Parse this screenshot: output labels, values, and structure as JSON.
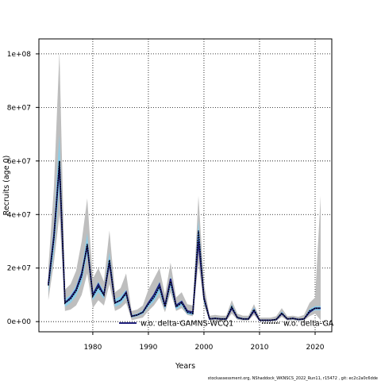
{
  "chart_data": {
    "type": "line",
    "title": "",
    "xlabel": "Years",
    "ylabel": "Recruits (age 0)",
    "xlim": [
      1970.3,
      2023
    ],
    "ylim": [
      -3800000,
      105600000
    ],
    "x_ticks": [
      1980,
      1990,
      2000,
      2010,
      2020
    ],
    "x_tick_labels": [
      "1980",
      "1990",
      "2000",
      "2010",
      "2020"
    ],
    "y_ticks": [
      0,
      20000000,
      40000000,
      60000000,
      80000000,
      100000000
    ],
    "y_tick_labels": [
      "0e+00",
      "2e+07",
      "4e+07",
      "6e+07",
      "8e+07",
      "1e+08"
    ],
    "grid": true,
    "legend_position": "bottom",
    "colors": {
      "band": "#bebebe",
      "main": "#1f1f7a",
      "alt_band": "#87ceeb",
      "alt_line": "#3a6fd0",
      "dotted": "#000000",
      "grid": "#000000"
    },
    "x": [
      1972,
      1973,
      1974,
      1975,
      1976,
      1977,
      1978,
      1979,
      1980,
      1981,
      1982,
      1983,
      1984,
      1985,
      1986,
      1987,
      1988,
      1989,
      1990,
      1991,
      1992,
      1993,
      1994,
      1995,
      1996,
      1997,
      1998,
      1999,
      2000,
      2001,
      2002,
      2003,
      2004,
      2005,
      2006,
      2007,
      2008,
      2009,
      2010,
      2011,
      2012,
      2013,
      2014,
      2015,
      2016,
      2017,
      2018,
      2019,
      2020,
      2021
    ],
    "series": [
      {
        "name": "w.o. delta-GAMNS-WCQ1",
        "style": "solid",
        "values": [
          14000000,
          32000000,
          58000000,
          7000000,
          9000000,
          12000000,
          18000000,
          28000000,
          10000000,
          14000000,
          10000000,
          22000000,
          7000000,
          8000000,
          11000000,
          2000000,
          2500000,
          3500000,
          7000000,
          10000000,
          14000000,
          6000000,
          16000000,
          6000000,
          7500000,
          4000000,
          3500000,
          30000000,
          9000000,
          1000000,
          1200000,
          1000000,
          1000000,
          5000000,
          1500000,
          1000000,
          1000000,
          4000000,
          500000,
          500000,
          500000,
          800000,
          3000000,
          1000000,
          1200000,
          800000,
          1000000,
          3500000,
          5000000,
          5000000
        ],
        "lower": [
          8000000,
          22000000,
          40000000,
          4000000,
          4500000,
          6000000,
          10000000,
          18000000,
          5000000,
          8000000,
          6000000,
          14000000,
          4000000,
          5000000,
          7000000,
          500000,
          1000000,
          1500000,
          4000000,
          6000000,
          9000000,
          3500000,
          11000000,
          4000000,
          5000000,
          2500000,
          2000000,
          22000000,
          6000000,
          300000,
          500000,
          300000,
          300000,
          3000000,
          700000,
          400000,
          400000,
          2500000,
          100000,
          100000,
          100000,
          200000,
          1800000,
          400000,
          500000,
          300000,
          400000,
          2000000,
          3000000,
          500000
        ],
        "upper": [
          20000000,
          50000000,
          101000000,
          12000000,
          14000000,
          19000000,
          30000000,
          46000000,
          16000000,
          20000000,
          15000000,
          34000000,
          11000000,
          12500000,
          18000000,
          4000000,
          4500000,
          6000000,
          12000000,
          16000000,
          20000000,
          10000000,
          22000000,
          9000000,
          11000000,
          6500000,
          6000000,
          47000000,
          14000000,
          2200000,
          2500000,
          2200000,
          2200000,
          8000000,
          3000000,
          2200000,
          2200000,
          6500000,
          1500000,
          1500000,
          1500000,
          2000000,
          5000000,
          2000000,
          2200000,
          1800000,
          2500000,
          7000000,
          9000000,
          47000000
        ]
      },
      {
        "name": "w.o. delta-GA",
        "style": "dashed",
        "values": [
          13500000,
          31000000,
          60000000,
          7000000,
          8500000,
          11500000,
          17000000,
          29000000,
          9500000,
          13000000,
          10000000,
          23000000,
          7000000,
          8000000,
          10500000,
          2000000,
          2500000,
          3500000,
          6500000,
          9000000,
          13000000,
          5500000,
          15000000,
          5500000,
          7000000,
          3500000,
          3000000,
          34000000,
          8500000,
          1000000,
          1200000,
          1000000,
          1000000,
          5500000,
          1500000,
          1000000,
          1000000,
          4500000,
          500000,
          500000,
          500000,
          800000,
          3200000,
          1000000,
          1200000,
          800000,
          1000000,
          4000000,
          5000000,
          5000000
        ],
        "lower": [
          11000000,
          26000000,
          50000000,
          5500000,
          7000000,
          9500000,
          14500000,
          25000000,
          8000000,
          11000000,
          8500000,
          20000000,
          5500000,
          6500000,
          9000000,
          1500000,
          2000000,
          2800000,
          5500000,
          7500000,
          11000000,
          4500000,
          13000000,
          4500000,
          6000000,
          2800000,
          2500000,
          30000000,
          7000000,
          700000,
          900000,
          700000,
          700000,
          4500000,
          1100000,
          700000,
          700000,
          3700000,
          300000,
          300000,
          300000,
          500000,
          2600000,
          700000,
          900000,
          500000,
          700000,
          3300000,
          4200000,
          4200000
        ],
        "upper": [
          16000000,
          36000000,
          70000000,
          8500000,
          10000000,
          13500000,
          19500000,
          33000000,
          11000000,
          15000000,
          11500000,
          26000000,
          8500000,
          9500000,
          12000000,
          2500000,
          3000000,
          4200000,
          7500000,
          10500000,
          15000000,
          6500000,
          17000000,
          6500000,
          8000000,
          4200000,
          3500000,
          38000000,
          10000000,
          1300000,
          1500000,
          1300000,
          1300000,
          6500000,
          1900000,
          1300000,
          1300000,
          5300000,
          700000,
          700000,
          700000,
          1100000,
          3800000,
          1300000,
          1500000,
          1100000,
          1300000,
          4700000,
          5800000,
          5800000
        ]
      }
    ]
  },
  "footer": "stockassessment.org, NShaddock_WKNSCS_2022_Run11, r15472 , git: ec2c2a0c6dde"
}
